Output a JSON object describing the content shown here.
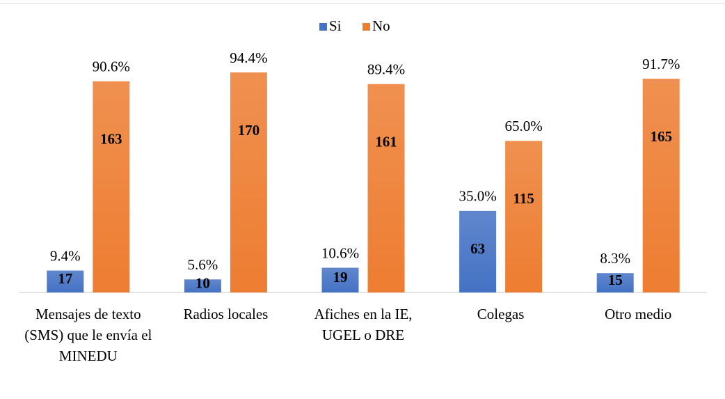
{
  "chart_data": {
    "type": "bar",
    "categories": [
      "Mensajes de texto (SMS) que le envía el MINEDU",
      "Radios locales",
      "Afiches en la IE, UGEL o DRE",
      "Colegas",
      "Otro medio"
    ],
    "series": [
      {
        "name": "Si",
        "color": "#4472c4",
        "values": [
          9.4,
          5.6,
          10.6,
          35.0,
          8.3
        ],
        "value_labels": [
          "9.4%",
          "5.6%",
          "10.6%",
          "35.0%",
          "8.3%"
        ],
        "counts": [
          17,
          10,
          19,
          63,
          15
        ]
      },
      {
        "name": "No",
        "color": "#ed7d31",
        "values": [
          90.6,
          94.4,
          89.4,
          65.0,
          91.7
        ],
        "value_labels": [
          "90.6%",
          "94.4%",
          "89.4%",
          "65.0%",
          "91.7%"
        ],
        "counts": [
          163,
          170,
          161,
          115,
          165
        ]
      }
    ],
    "legend": "top"
  }
}
